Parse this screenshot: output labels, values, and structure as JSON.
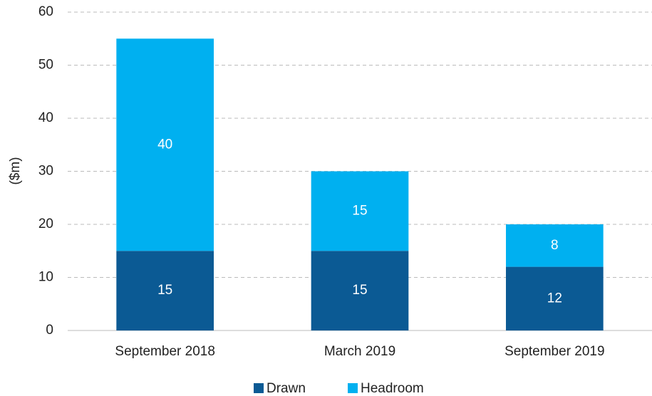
{
  "chart_data": {
    "type": "stacked_bar",
    "y_label": "($m)",
    "categories": [
      "September 2018",
      "March 2019",
      "September 2019"
    ],
    "series": [
      {
        "name": "Drawn",
        "color": "#0b5a94",
        "values": [
          15,
          15,
          12
        ]
      },
      {
        "name": "Headroom",
        "color": "#00b0f0",
        "values": [
          40,
          15,
          8
        ]
      }
    ],
    "ylim": [
      0,
      60
    ],
    "yticks": [
      0,
      10,
      20,
      30,
      40,
      50,
      60
    ],
    "grid": true,
    "legend": "bottom"
  }
}
